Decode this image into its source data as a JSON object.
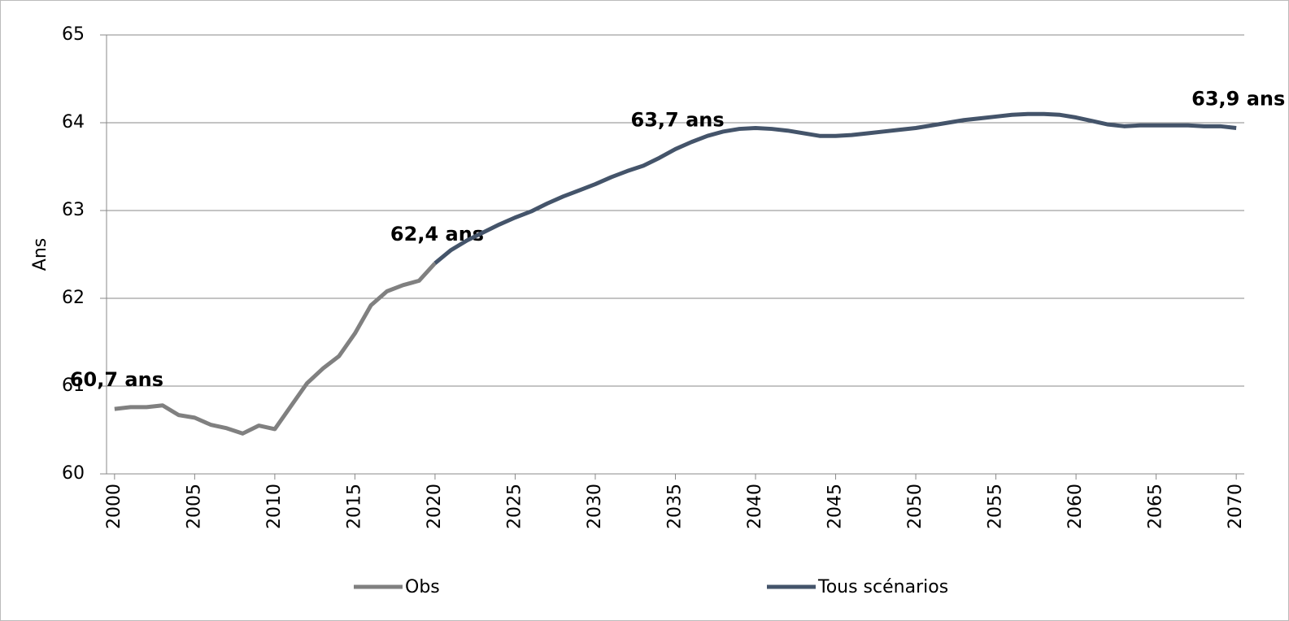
{
  "chart_data": {
    "type": "line",
    "y_label": "Ans",
    "x": [
      2000,
      2001,
      2002,
      2003,
      2004,
      2005,
      2006,
      2007,
      2008,
      2009,
      2010,
      2011,
      2012,
      2013,
      2014,
      2015,
      2016,
      2017,
      2018,
      2019,
      2020,
      2021,
      2022,
      2023,
      2024,
      2025,
      2026,
      2027,
      2028,
      2029,
      2030,
      2031,
      2032,
      2033,
      2034,
      2035,
      2036,
      2037,
      2038,
      2039,
      2040,
      2041,
      2042,
      2043,
      2044,
      2045,
      2046,
      2047,
      2048,
      2049,
      2050,
      2051,
      2052,
      2053,
      2054,
      2055,
      2056,
      2057,
      2058,
      2059,
      2060,
      2061,
      2062,
      2063,
      2064,
      2065,
      2066,
      2067,
      2068,
      2069,
      2070
    ],
    "xlim": [
      1999.5,
      2070.5
    ],
    "xticks": [
      2000,
      2005,
      2010,
      2015,
      2020,
      2025,
      2030,
      2035,
      2040,
      2045,
      2050,
      2055,
      2060,
      2065,
      2070
    ],
    "ylim": [
      60,
      65
    ],
    "yticks": [
      60,
      61,
      62,
      63,
      64,
      65
    ],
    "grid": true,
    "legend": "bottom",
    "series": [
      {
        "name": "Obs",
        "color": "#808080",
        "values": [
          60.74,
          60.76,
          60.76,
          60.78,
          60.67,
          60.64,
          60.56,
          60.52,
          60.46,
          60.55,
          60.51,
          60.77,
          61.03,
          61.2,
          61.34,
          61.6,
          61.92,
          62.08,
          62.15,
          62.2,
          62.4,
          null,
          null,
          null,
          null,
          null,
          null,
          null,
          null,
          null,
          null,
          null,
          null,
          null,
          null,
          null,
          null,
          null,
          null,
          null,
          null,
          null,
          null,
          null,
          null,
          null,
          null,
          null,
          null,
          null,
          null,
          null,
          null,
          null,
          null,
          null,
          null,
          null,
          null,
          null,
          null,
          null,
          null,
          null,
          null,
          null,
          null,
          null,
          null,
          null,
          null
        ],
        "value_labels": [
          "60,7 ans",
          null,
          null,
          null,
          null,
          null,
          null,
          null,
          null,
          null,
          null,
          null,
          null,
          null,
          null,
          null,
          null,
          null,
          null,
          null,
          "62,4 ans",
          null,
          null,
          null,
          null,
          null,
          null,
          null,
          null,
          null,
          null,
          null,
          null,
          null,
          null,
          null,
          null,
          null,
          null,
          null,
          null,
          null,
          null,
          null,
          null,
          null,
          null,
          null,
          null,
          null,
          null,
          null,
          null,
          null,
          null,
          null,
          null,
          null,
          null,
          null,
          null,
          null,
          null,
          null,
          null,
          null,
          null,
          null,
          null,
          null,
          null
        ]
      },
      {
        "name": "Tous scénarios",
        "color": "#44546a",
        "values": [
          null,
          null,
          null,
          null,
          null,
          null,
          null,
          null,
          null,
          null,
          null,
          null,
          null,
          null,
          null,
          null,
          null,
          null,
          null,
          null,
          62.4,
          62.55,
          62.66,
          62.75,
          62.84,
          62.92,
          62.99,
          63.08,
          63.16,
          63.23,
          63.3,
          63.38,
          63.45,
          63.51,
          63.6,
          63.7,
          63.78,
          63.85,
          63.9,
          63.93,
          63.94,
          63.93,
          63.91,
          63.88,
          63.85,
          63.85,
          63.86,
          63.88,
          63.9,
          63.92,
          63.94,
          63.97,
          64.0,
          64.03,
          64.05,
          64.07,
          64.09,
          64.1,
          64.1,
          64.09,
          64.06,
          64.02,
          63.98,
          63.96,
          63.97,
          63.97,
          63.97,
          63.97,
          63.96,
          63.96,
          63.94
        ],
        "value_labels": [
          null,
          null,
          null,
          null,
          null,
          null,
          null,
          null,
          null,
          null,
          null,
          null,
          null,
          null,
          null,
          null,
          null,
          null,
          null,
          null,
          null,
          null,
          null,
          null,
          null,
          null,
          null,
          null,
          null,
          null,
          null,
          null,
          null,
          null,
          null,
          "63,7 ans",
          null,
          null,
          null,
          null,
          null,
          null,
          null,
          null,
          null,
          null,
          null,
          null,
          null,
          null,
          null,
          null,
          null,
          null,
          null,
          null,
          null,
          null,
          null,
          null,
          null,
          null,
          null,
          null,
          null,
          null,
          null,
          null,
          null,
          null,
          "63,9 ans"
        ]
      }
    ]
  }
}
